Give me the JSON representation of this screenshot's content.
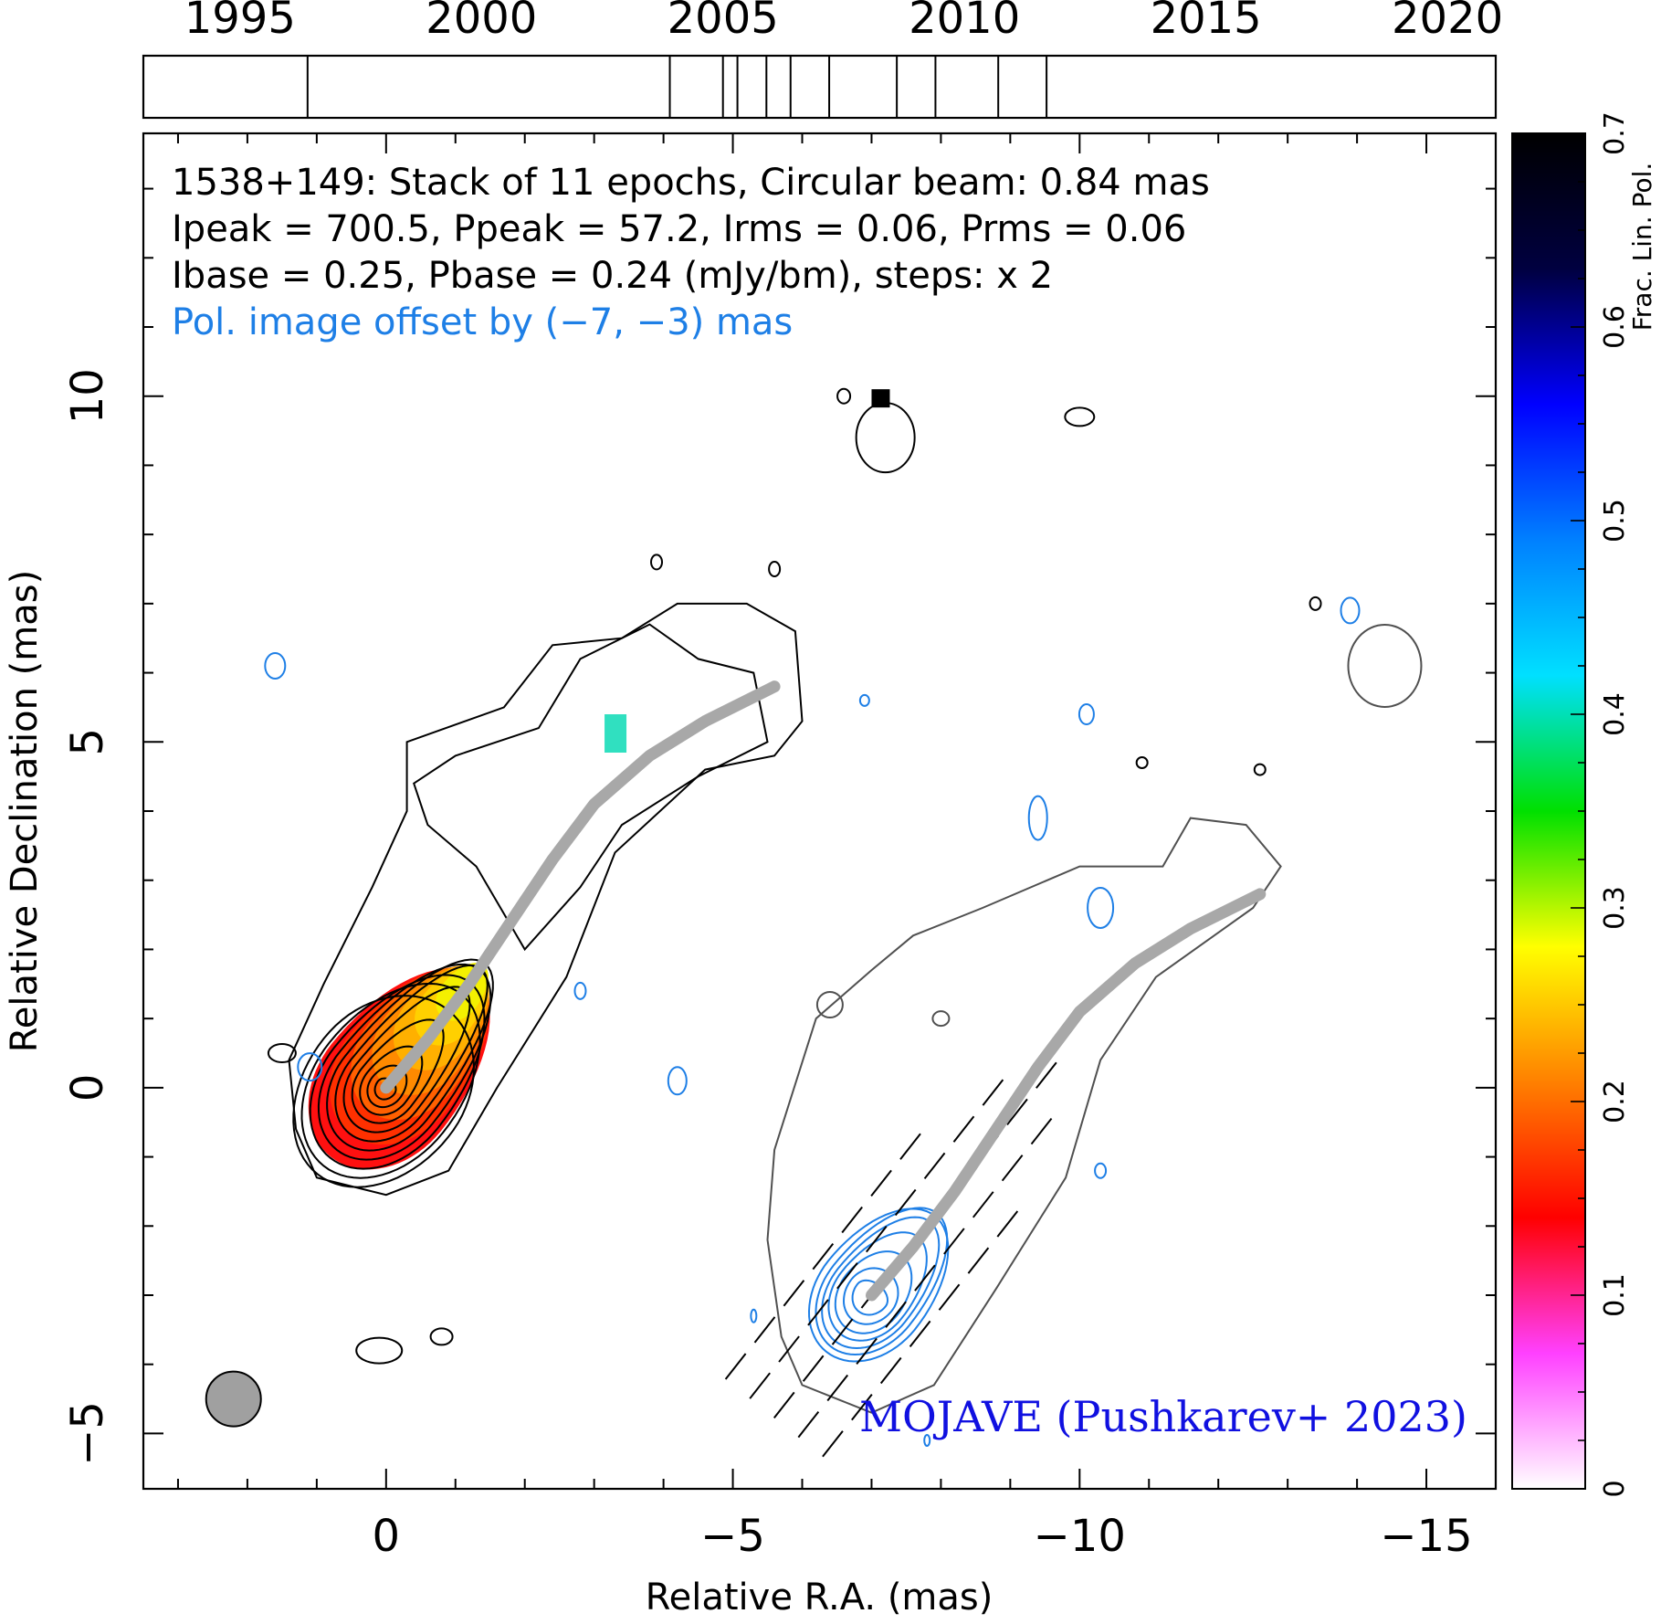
{
  "chart_data": {
    "type": "contour_map",
    "source": "1538+149",
    "annotation_lines": [
      "1538+149: Stack of 11 epochs, Circular beam: 0.84 mas",
      "Ipeak = 700.5, Ppeak = 57.2, Irms = 0.06, Prms = 0.06",
      "Ibase = 0.25, Pbase = 0.24 (mJy/bm), steps: x 2"
    ],
    "offset_note": "Pol. image offset by (−7, −3) mas",
    "credit": "MOJAVE (Pushkarev+ 2023)",
    "xlabel": "Relative R.A. (mas)",
    "ylabel": "Relative Declination (mas)",
    "xlim": [
      3.5,
      -16
    ],
    "ylim": [
      -5.8,
      13.8
    ],
    "x_ticks": [
      {
        "v": 0,
        "label": "0"
      },
      {
        "v": -5,
        "label": "−5"
      },
      {
        "v": -10,
        "label": "−10"
      },
      {
        "v": -15,
        "label": "−15"
      }
    ],
    "y_ticks": [
      {
        "v": -5,
        "label": "−5"
      },
      {
        "v": 0,
        "label": "0"
      },
      {
        "v": 5,
        "label": "5"
      },
      {
        "v": 10,
        "label": "10"
      }
    ],
    "epoch_timeline": {
      "range": [
        1993.0,
        2021.0
      ],
      "year_ticks": [
        {
          "v": 1995,
          "label": "1995"
        },
        {
          "v": 2000,
          "label": "2000"
        },
        {
          "v": 2005,
          "label": "2005"
        },
        {
          "v": 2010,
          "label": "2010"
        },
        {
          "v": 2015,
          "label": "2015"
        },
        {
          "v": 2020,
          "label": "2020"
        }
      ],
      "epochs": [
        1996.4,
        2003.9,
        2005.0,
        2005.3,
        2005.9,
        2006.4,
        2007.2,
        2008.6,
        2009.4,
        2010.7,
        2011.7
      ]
    },
    "colorbar": {
      "label": "Frac. Lin. Pol.",
      "range": [
        0,
        0.7
      ],
      "ticks": [
        {
          "v": 0,
          "label": "0"
        },
        {
          "v": 0.1,
          "label": "0.1"
        },
        {
          "v": 0.2,
          "label": "0.2"
        },
        {
          "v": 0.3,
          "label": "0.3"
        },
        {
          "v": 0.4,
          "label": "0.4"
        },
        {
          "v": 0.5,
          "label": "0.5"
        },
        {
          "v": 0.6,
          "label": "0.6"
        },
        {
          "v": 0.7,
          "label": "0.7"
        }
      ],
      "stops": [
        "#ffffff",
        "#ff40ff",
        "#ff0000",
        "#ff8000",
        "#ffff00",
        "#00e000",
        "#00e0ff",
        "#0080ff",
        "#0000ff",
        "#000040",
        "#000000"
      ]
    },
    "beam": {
      "x": 2.2,
      "y": -4.5,
      "diameter_mas": 0.84
    },
    "ridgeline": [
      [
        0,
        0
      ],
      [
        -0.6,
        0.7
      ],
      [
        -1.2,
        1.5
      ],
      [
        -1.8,
        2.4
      ],
      [
        -2.4,
        3.3
      ],
      [
        -3.0,
        4.1
      ],
      [
        -3.8,
        4.8
      ],
      [
        -4.6,
        5.3
      ],
      [
        -5.6,
        5.8
      ]
    ],
    "pol_offset": [
      -7,
      -3
    ],
    "total_intensity_contours": [
      {
        "sx": 1.6,
        "sy": 1.15,
        "w": 0.9
      },
      {
        "sx": 1.45,
        "sy": 1.05,
        "w": 1.2
      },
      {
        "sx": 1.3,
        "sy": 0.95,
        "w": 1.5
      },
      {
        "sx": 1.15,
        "sy": 0.85,
        "w": 1.9
      },
      {
        "sx": 1.0,
        "sy": 0.75,
        "w": 2.3
      },
      {
        "sx": 0.85,
        "sy": 0.65,
        "w": 2.6
      },
      {
        "sx": 0.7,
        "sy": 0.55,
        "w": 2.6
      },
      {
        "sx": 0.55,
        "sy": 0.45,
        "w": 2.2
      },
      {
        "sx": 0.42,
        "sy": 0.35,
        "w": 1.7
      },
      {
        "sx": 0.3,
        "sy": 0.25,
        "w": 1.2
      },
      {
        "sx": 0.18,
        "sy": 0.15,
        "w": 0.7
      }
    ],
    "pol_contours": [
      {
        "sx": 1.05,
        "sy": 0.8,
        "w": 1.4
      },
      {
        "sx": 0.95,
        "sy": 0.7,
        "w": 1.6
      },
      {
        "sx": 0.85,
        "sy": 0.62,
        "w": 1.6
      },
      {
        "sx": 0.72,
        "sy": 0.55,
        "w": 1.5
      },
      {
        "sx": 0.6,
        "sy": 0.47,
        "w": 1.2
      },
      {
        "sx": 0.45,
        "sy": 0.37,
        "w": 0.9
      },
      {
        "sx": 0.3,
        "sy": 0.26,
        "w": 0.6
      }
    ]
  }
}
